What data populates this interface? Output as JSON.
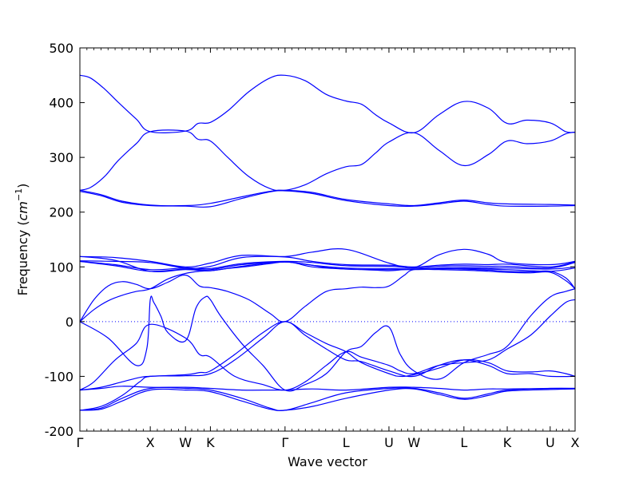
{
  "chart_data": {
    "type": "line",
    "title": "",
    "xlabel": "Wave vector",
    "ylabel": "Frequency",
    "ylabel_unit": "cm",
    "ylabel_unit_exp": "−1",
    "ylim": [
      -200,
      500
    ],
    "yticks": [
      -200,
      -100,
      0,
      100,
      200,
      300,
      400,
      500
    ],
    "zero_line": true,
    "grid": false,
    "legend": "none",
    "line_color": "#0000ff",
    "high_symmetry_points": [
      {
        "label": "Γ",
        "x": 0.0
      },
      {
        "label": "X",
        "x": 1.0
      },
      {
        "label": "W",
        "x": 1.5
      },
      {
        "label": "K",
        "x": 1.854
      },
      {
        "label": "Γ",
        "x": 2.914
      },
      {
        "label": "L",
        "x": 3.78
      },
      {
        "label": "U",
        "x": 4.39
      },
      {
        "label": "W",
        "x": 4.745
      },
      {
        "label": "L",
        "x": 5.455
      },
      {
        "label": "K",
        "x": 6.07
      },
      {
        "label": "U",
        "x": 6.68
      },
      {
        "label": "X",
        "x": 7.034
      }
    ],
    "series": [
      {
        "x": [
          0,
          0.15,
          0.35,
          0.55,
          0.8,
          1.0,
          1.5,
          1.68,
          1.854,
          2.1,
          2.4,
          2.7,
          2.914,
          3.2,
          3.5,
          3.78,
          4.0,
          4.2,
          4.39,
          4.745,
          5.1,
          5.455,
          5.8,
          6.07,
          6.35,
          6.68,
          6.9,
          7.034
        ],
        "y": [
          450,
          445,
          425,
          400,
          370,
          347,
          348,
          362,
          364,
          385,
          420,
          445,
          450,
          440,
          415,
          403,
          397,
          378,
          363,
          345,
          378,
          402,
          390,
          362,
          368,
          363,
          347,
          346
        ]
      },
      {
        "x": [
          0,
          0.15,
          0.35,
          0.55,
          0.8,
          1.0,
          1.5,
          1.68,
          1.854,
          2.1,
          2.4,
          2.7,
          2.914,
          3.2,
          3.5,
          3.78,
          4.0,
          4.2,
          4.39,
          4.745,
          5.1,
          5.455,
          5.8,
          6.07,
          6.35,
          6.68,
          6.9,
          7.034
        ],
        "y": [
          240,
          245,
          265,
          295,
          325,
          347,
          348,
          333,
          330,
          300,
          265,
          243,
          240,
          250,
          270,
          283,
          287,
          308,
          328,
          345,
          313,
          285,
          305,
          330,
          325,
          330,
          343,
          346
        ]
      },
      {
        "x": [
          0,
          0.3,
          0.6,
          1.0,
          1.5,
          1.854,
          2.3,
          2.7,
          2.914,
          3.3,
          3.78,
          4.39,
          4.745,
          5.1,
          5.455,
          5.8,
          6.07,
          6.68,
          7.034
        ],
        "y": [
          240,
          232,
          220,
          213,
          212,
          216,
          228,
          238,
          240,
          236,
          223,
          215,
          212,
          217,
          222,
          217,
          215,
          214,
          213
        ]
      },
      {
        "x": [
          0,
          0.3,
          0.6,
          1.0,
          1.5,
          1.854,
          2.3,
          2.7,
          2.914,
          3.3,
          3.78,
          4.39,
          4.745,
          5.1,
          5.455,
          5.8,
          6.07,
          6.68,
          7.034
        ],
        "y": [
          238,
          230,
          218,
          212,
          211,
          210,
          225,
          237,
          239,
          234,
          221,
          212,
          211,
          215,
          220,
          214,
          211,
          211,
          212
        ]
      },
      {
        "x": [
          0,
          0.5,
          1.0,
          1.5,
          1.854,
          2.3,
          2.914,
          3.3,
          3.78,
          4.39,
          4.745,
          5.1,
          5.455,
          5.8,
          6.07,
          6.68,
          7.034
        ],
        "y": [
          119,
          117,
          110,
          100,
          107,
          121,
          119,
          127,
          132,
          107,
          99,
          122,
          132,
          123,
          108,
          104,
          110
        ]
      },
      {
        "x": [
          0,
          0.5,
          1.0,
          1.5,
          1.854,
          2.3,
          2.914,
          3.3,
          3.78,
          4.39,
          4.745,
          5.1,
          5.455,
          5.8,
          6.07,
          6.68,
          7.034
        ],
        "y": [
          111,
          110,
          108,
          98,
          101,
          117,
          118,
          110,
          104,
          103,
          100,
          103,
          105,
          104,
          105,
          100,
          109
        ]
      },
      {
        "x": [
          0,
          0.5,
          1.0,
          1.5,
          1.854,
          2.3,
          2.914,
          3.3,
          3.78,
          4.39,
          4.745,
          5.1,
          5.455,
          5.8,
          6.07,
          6.68,
          7.034
        ],
        "y": [
          110,
          104,
          95,
          98,
          97,
          106,
          110,
          108,
          102,
          101,
          98,
          101,
          102,
          101,
          101,
          98,
          108
        ]
      },
      {
        "x": [
          0,
          0.5,
          1.0,
          1.5,
          1.854,
          2.3,
          2.914,
          3.3,
          3.78,
          4.39,
          4.745,
          5.1,
          5.455,
          5.8,
          6.07,
          6.68,
          7.034
        ],
        "y": [
          110,
          102,
          92,
          96,
          95,
          104,
          109,
          103,
          98,
          97,
          96,
          98,
          99,
          98,
          98,
          96,
          100
        ]
      },
      {
        "x": [
          0,
          0.5,
          1.0,
          1.5,
          1.854,
          2.3,
          2.914,
          3.3,
          3.78,
          4.39,
          4.745,
          5.1,
          5.455,
          5.8,
          6.07,
          6.68,
          7.034
        ],
        "y": [
          119,
          112,
          92,
          95,
          93,
          101,
          109,
          100,
          96,
          95,
          95,
          96,
          97,
          96,
          95,
          92,
          98
        ]
      },
      {
        "x": [
          0,
          0.2,
          0.4,
          0.6,
          0.8,
          1.0,
          1.25,
          1.5,
          1.7,
          1.854,
          2.1,
          2.4,
          2.7,
          2.914,
          3.2,
          3.5,
          3.78,
          4.0,
          4.2,
          4.39,
          4.6,
          4.745,
          5.1,
          5.455,
          5.8,
          6.07,
          6.4,
          6.68,
          6.9,
          7.034
        ],
        "y": [
          0,
          40,
          65,
          73,
          68,
          60,
          72,
          85,
          65,
          62,
          55,
          40,
          15,
          0,
          28,
          55,
          60,
          63,
          62,
          65,
          84,
          95,
          97,
          96,
          94,
          92,
          91,
          92,
          80,
          60
        ]
      },
      {
        "x": [
          0,
          0.2,
          0.4,
          0.6,
          0.8,
          1.0,
          1.25,
          1.5,
          1.7,
          1.854,
          2.1,
          2.4,
          2.7,
          2.914,
          3.2,
          3.5,
          3.78,
          4.0,
          4.2,
          4.39,
          4.6,
          4.745,
          5.1,
          5.455,
          5.8,
          6.07,
          6.4,
          6.68,
          6.9,
          7.034
        ],
        "y": [
          0,
          22,
          38,
          48,
          55,
          60,
          78,
          88,
          92,
          93,
          97,
          101,
          106,
          109,
          105,
          99,
          96,
          95,
          94,
          93,
          95,
          96,
          95,
          94,
          92,
          90,
          89,
          90,
          75,
          60
        ]
      },
      {
        "x": [
          0,
          0.4,
          0.8,
          0.95,
          1.0,
          1.05,
          1.15,
          1.25,
          1.5,
          1.65,
          1.78,
          1.854,
          2.0,
          2.3,
          2.6,
          2.914,
          3.2,
          3.5,
          3.78,
          4.0,
          4.2,
          4.39,
          4.55,
          4.745,
          5.1,
          5.455,
          5.8,
          6.07,
          6.4,
          6.68,
          6.9,
          7.034
        ],
        "y": [
          0,
          -30,
          -80,
          -50,
          40,
          35,
          10,
          -20,
          -35,
          25,
          45,
          40,
          10,
          -40,
          -80,
          -125,
          -115,
          -95,
          -55,
          -45,
          -20,
          -10,
          -60,
          -90,
          -105,
          -75,
          -60,
          -45,
          10,
          45,
          55,
          60
        ]
      },
      {
        "x": [
          0,
          0.2,
          0.5,
          0.8,
          1.0,
          1.5,
          1.7,
          1.854,
          2.2,
          2.6,
          2.914,
          3.2,
          3.5,
          3.78,
          4.0,
          4.39,
          4.55,
          4.745,
          5.1,
          5.455,
          5.8,
          6.07,
          6.4,
          6.68,
          6.9,
          7.034
        ],
        "y": [
          -125,
          -110,
          -70,
          -40,
          -5,
          -30,
          -60,
          -65,
          -100,
          -115,
          -125,
          -110,
          -80,
          -55,
          -65,
          -80,
          -90,
          -95,
          -80,
          -75,
          -70,
          -50,
          -25,
          10,
          35,
          40
        ]
      },
      {
        "x": [
          0,
          0.3,
          0.6,
          0.85,
          1.0,
          1.5,
          1.7,
          1.854,
          2.2,
          2.6,
          2.914,
          3.2,
          3.5,
          3.78,
          4.0,
          4.39,
          4.55,
          4.745,
          5.1,
          5.455,
          5.8,
          6.07,
          6.4,
          6.68,
          6.9,
          7.034
        ],
        "y": [
          -125,
          -120,
          -110,
          -102,
          -100,
          -97,
          -93,
          -90,
          -60,
          -20,
          0,
          -20,
          -40,
          -55,
          -75,
          -95,
          -100,
          -97,
          -85,
          -70,
          -75,
          -90,
          -92,
          -90,
          -95,
          -100
        ]
      },
      {
        "x": [
          0,
          0.3,
          0.6,
          0.85,
          1.0,
          1.5,
          1.854,
          2.2,
          2.6,
          2.914,
          3.2,
          3.5,
          3.78,
          4.0,
          4.39,
          4.745,
          5.1,
          5.455,
          5.8,
          6.07,
          6.4,
          6.68,
          7.034
        ],
        "y": [
          -162,
          -155,
          -135,
          -110,
          -100,
          -99,
          -95,
          -70,
          -30,
          0,
          -25,
          -50,
          -70,
          -73,
          -90,
          -100,
          -80,
          -70,
          -80,
          -95,
          -95,
          -100,
          -100
        ]
      },
      {
        "x": [
          0,
          0.3,
          0.6,
          1.0,
          1.5,
          1.854,
          2.3,
          2.7,
          2.914,
          3.3,
          3.78,
          4.39,
          4.745,
          5.1,
          5.455,
          5.8,
          6.07,
          6.68,
          7.034
        ],
        "y": [
          -125,
          -122,
          -118,
          -120,
          -120,
          -122,
          -125,
          -125,
          -125,
          -123,
          -125,
          -120,
          -120,
          -122,
          -125,
          -123,
          -123,
          -122,
          -122
        ]
      },
      {
        "x": [
          0,
          0.3,
          0.6,
          1.0,
          1.5,
          1.854,
          2.3,
          2.7,
          2.914,
          3.3,
          3.78,
          4.39,
          4.745,
          5.1,
          5.455,
          5.8,
          6.07,
          6.68,
          7.034
        ],
        "y": [
          -162,
          -158,
          -140,
          -122,
          -122,
          -125,
          -140,
          -158,
          -162,
          -148,
          -130,
          -122,
          -122,
          -130,
          -140,
          -132,
          -125,
          -122,
          -122
        ]
      },
      {
        "x": [
          0,
          0.3,
          0.6,
          1.0,
          1.5,
          1.854,
          2.3,
          2.7,
          2.914,
          3.3,
          3.78,
          4.39,
          4.745,
          5.1,
          5.455,
          5.8,
          6.07,
          6.68,
          7.034
        ],
        "y": [
          -162,
          -160,
          -145,
          -125,
          -125,
          -128,
          -145,
          -160,
          -162,
          -155,
          -140,
          -125,
          -123,
          -133,
          -142,
          -135,
          -127,
          -124,
          -123
        ]
      }
    ]
  }
}
